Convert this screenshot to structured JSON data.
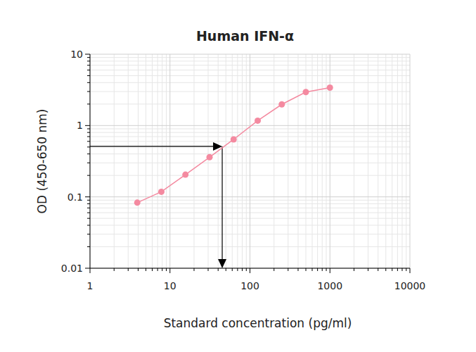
{
  "chart_data": {
    "type": "line",
    "title": "Human IFN-α",
    "x_label": "Standard concentration (pg/ml)",
    "y_label": "OD (450-650 nm)",
    "x": [
      3.9,
      7.8,
      15.6,
      31.25,
      62.5,
      125,
      250,
      500,
      1000
    ],
    "values": [
      0.083,
      0.118,
      0.205,
      0.36,
      0.64,
      1.17,
      1.98,
      2.95,
      3.4
    ],
    "color": "#f48aa0",
    "marker": "circle",
    "line_style": "solid",
    "log": true,
    "grid": true,
    "xlim": [
      1,
      10000
    ],
    "xticks": [
      1,
      10,
      100,
      1000,
      10000
    ],
    "ylim": [
      0.01,
      10
    ],
    "yticks": [
      0.01,
      0.1,
      1,
      10
    ],
    "annotation_point": {
      "x": 45,
      "y": 0.51
    }
  }
}
